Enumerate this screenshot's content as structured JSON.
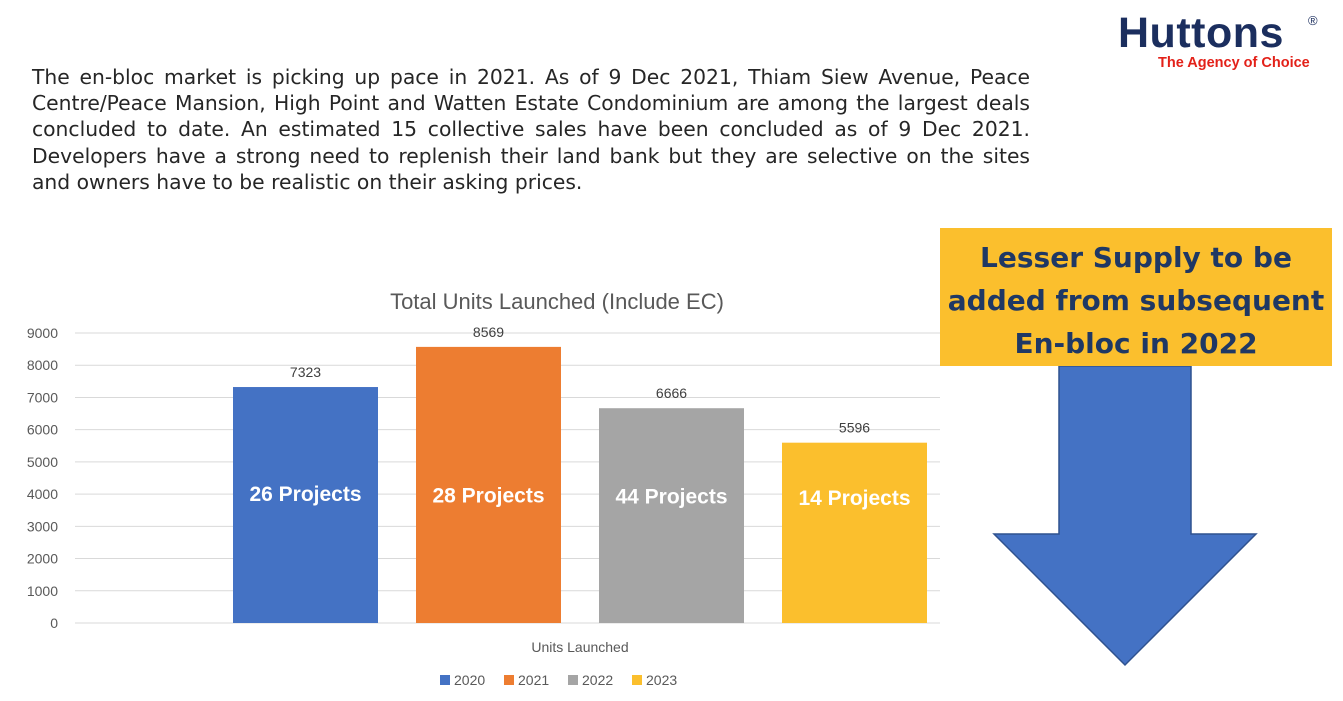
{
  "brand": {
    "name": "Huttons",
    "reg_mark": "®",
    "tagline": "The Agency of Choice",
    "name_color": "#1b2e5e",
    "tagline_color": "#e32119"
  },
  "intro_text": "The en-bloc market is picking up pace in 2021. As of 9 Dec 2021, Thiam Siew Avenue, Peace Centre/Peace Mansion, High Point and Watten Estate Condominium are among the largest deals concluded to date. An estimated 15 collective sales have been concluded as of 9 Dec 2021. Developers have a strong need to replenish their land bank but they are selective on the sites and owners have to be realistic on their asking prices.",
  "callout": {
    "lines": [
      "Lesser Supply to be",
      "added from subsequent",
      "En-bloc in 2022"
    ],
    "background": "#fbbf2d",
    "text_color": "#1f3864"
  },
  "arrow": {
    "direction": "down",
    "color": "#4472c4",
    "stroke": "#2f528f"
  },
  "chart_data": {
    "type": "bar",
    "title": "Total Units Launched (Include EC)",
    "xlabel": "Units Launched",
    "categories": [
      "Units Launched"
    ],
    "series": [
      {
        "name": "2020",
        "values": [
          7323
        ],
        "color": "#4472c4",
        "label": "7323",
        "inner_label": "26 Projects"
      },
      {
        "name": "2021",
        "values": [
          8569
        ],
        "color": "#ed7d31",
        "label": "8569",
        "inner_label": "28 Projects"
      },
      {
        "name": "2022",
        "values": [
          6666
        ],
        "color": "#a5a5a5",
        "label": "6666",
        "inner_label": "44 Projects"
      },
      {
        "name": "2023",
        "values": [
          5596
        ],
        "color": "#fbbf2d",
        "label": "5596",
        "inner_label": "14 Projects"
      }
    ],
    "ylim": [
      0,
      9000
    ],
    "yticks": [
      0,
      1000,
      2000,
      3000,
      4000,
      5000,
      6000,
      7000,
      8000,
      9000
    ],
    "grid": true,
    "legend": "bottom"
  }
}
